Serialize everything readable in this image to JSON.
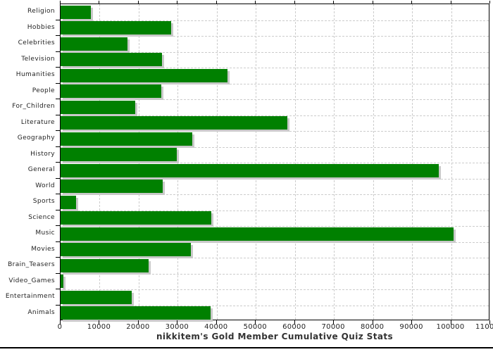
{
  "chart_data": {
    "type": "bar",
    "orientation": "horizontal",
    "title": "nikkitem's Gold Member Cumulative Quiz Stats",
    "categories": [
      "Religion",
      "Hobbies",
      "Celebrities",
      "Television",
      "Humanities",
      "People",
      "For_Children",
      "Literature",
      "Geography",
      "History",
      "General",
      "World",
      "Sports",
      "Science",
      "Music",
      "Movies",
      "Brain_Teasers",
      "Video_Games",
      "Entertainment",
      "Animals"
    ],
    "values": [
      7800,
      28300,
      17200,
      26000,
      42800,
      25800,
      19200,
      58100,
      33800,
      29800,
      96800,
      26100,
      3900,
      38500,
      100700,
      33300,
      22500,
      700,
      18300,
      38400
    ],
    "xlim": [
      0,
      110000
    ],
    "x_ticks": [
      0,
      10000,
      20000,
      30000,
      40000,
      50000,
      60000,
      70000,
      80000,
      90000,
      100000,
      110000
    ],
    "x_tick_labels": [
      "0",
      "10000",
      "20000",
      "30000",
      "40000",
      "50000",
      "60000",
      "70000",
      "80000",
      "90000",
      "100000",
      "110000"
    ],
    "xlabel": "",
    "ylabel": "",
    "grid": "dashed-both-axes",
    "legend": "none",
    "bar_color": "#008000",
    "bar_shadow_color": "#c9c9c9",
    "grid_color": "#cccccc",
    "axis_color": "#000000",
    "text_color": "#222222",
    "title_color": "#333333"
  }
}
